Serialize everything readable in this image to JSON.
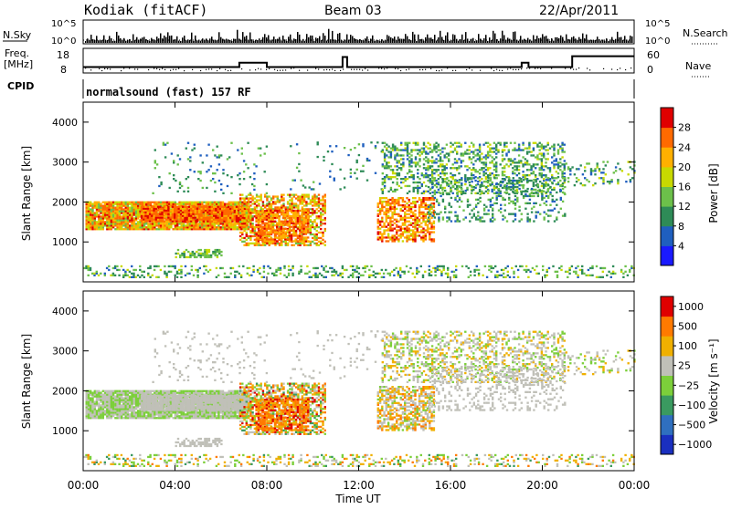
{
  "header": {
    "station": "Kodiak (fitACF)",
    "beam": "Beam 03",
    "date": "22/Apr/2011"
  },
  "nsky_panel": {
    "left_label": "N.Sky",
    "right_label": "N.Search",
    "y_ticks_left": [
      "10^5",
      "10^0"
    ],
    "y_ticks_right": [
      "10^5",
      "10^0"
    ]
  },
  "freq_panel": {
    "left_label_line1": "Freq.",
    "left_label_line2": "[MHz]",
    "right_label": "Nave",
    "y_ticks_left": [
      "18",
      "8"
    ],
    "y_ticks_right": [
      "60",
      "0"
    ]
  },
  "cpid_panel": {
    "label": "CPID",
    "program": "normalsound (fast) 157 RF"
  },
  "chart_data": [
    {
      "type": "heatmap",
      "name": "power",
      "ylabel": "Slant Range [km]",
      "xlim_hours": [
        0,
        24
      ],
      "ylim_km": [
        0,
        4500
      ],
      "y_ticks": [
        "1000",
        "2000",
        "3000",
        "4000"
      ],
      "colorbar": {
        "label": "Power [dB]",
        "ticks": [
          "4",
          "8",
          "12",
          "16",
          "20",
          "24",
          "28"
        ],
        "colors": [
          "#1a1aff",
          "#1f5fbf",
          "#2e8b57",
          "#6cc04a",
          "#c8d900",
          "#ffb000",
          "#ff6a00",
          "#e00000"
        ]
      }
    },
    {
      "type": "heatmap",
      "name": "velocity",
      "ylabel": "Slant Range [km]",
      "xlim_hours": [
        0,
        24
      ],
      "ylim_km": [
        0,
        4500
      ],
      "y_ticks": [
        "1000",
        "2000",
        "3000",
        "4000"
      ],
      "colorbar": {
        "label": "Velocity [m s⁻¹]",
        "ticks": [
          "1000",
          "500",
          "100",
          "25",
          "−25",
          "−100",
          "−500",
          "−1000"
        ],
        "colors": [
          "#1a2fbf",
          "#2f6fbf",
          "#3a9a60",
          "#7ccf3a",
          "#c0c0b8",
          "#f0b000",
          "#ff7a00",
          "#e00000"
        ]
      }
    }
  ],
  "x_axis": {
    "tick_labels": [
      "00:00",
      "04:00",
      "08:00",
      "12:00",
      "16:00",
      "20:00",
      "00:00"
    ],
    "xlabel": "Time UT"
  }
}
